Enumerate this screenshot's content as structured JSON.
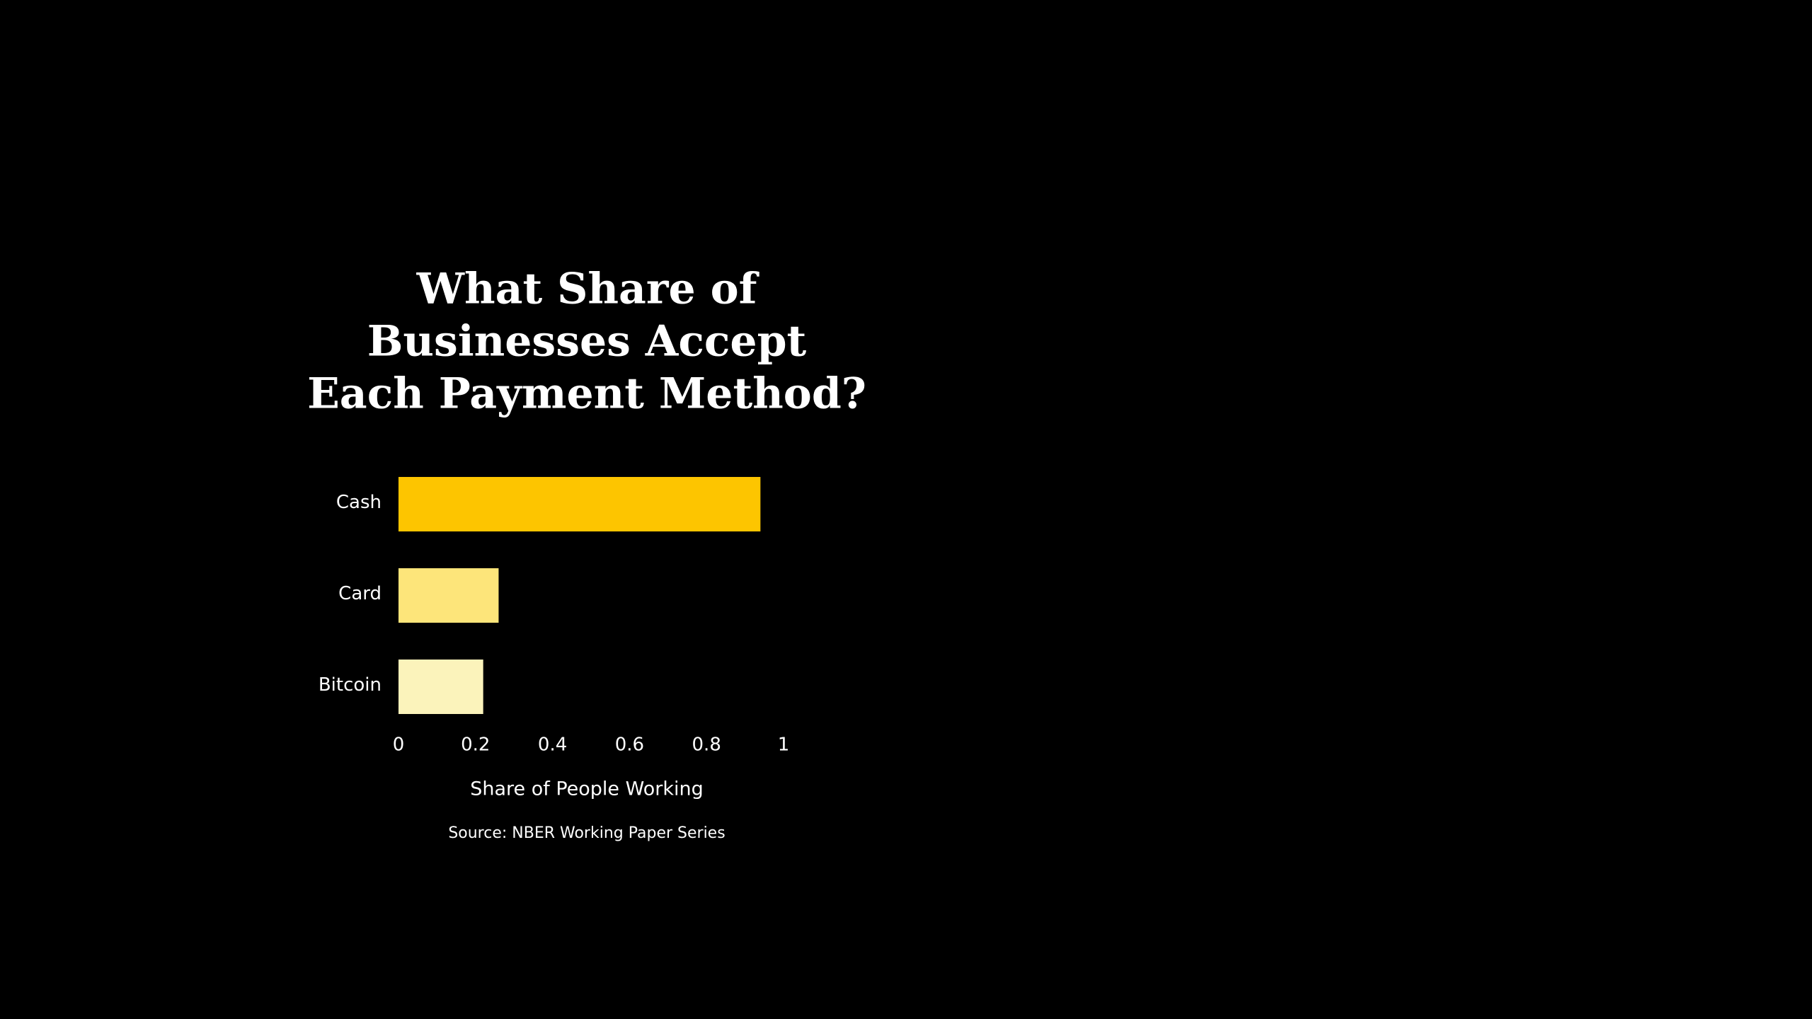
{
  "chart_data": {
    "type": "bar",
    "orientation": "horizontal",
    "title": [
      "What Share of",
      "Businesses Accept",
      "Each Payment Method?"
    ],
    "categories": [
      "Cash",
      "Card",
      "Bitcoin"
    ],
    "values": [
      0.94,
      0.26,
      0.22
    ],
    "colors": [
      "#fdc500",
      "#fde57a",
      "#fbf3bb"
    ],
    "xlim": [
      0,
      1
    ],
    "xticks": [
      0,
      0.2,
      0.4,
      0.6,
      0.8,
      1
    ],
    "xlabel": "Share of People Working",
    "source": "Source: NBER Working Paper Series",
    "grid": false
  }
}
